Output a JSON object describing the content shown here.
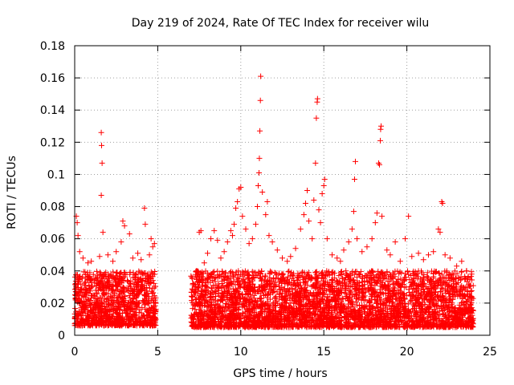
{
  "chart_data": {
    "type": "scatter",
    "title": "Day 219 of 2024, Rate Of TEC Index for receiver wilu",
    "xlabel": "GPS time / hours",
    "ylabel": "ROTI / TECUs",
    "xlim": [
      0,
      25
    ],
    "ylim": [
      0,
      0.18
    ],
    "xticks": [
      0,
      5,
      10,
      15,
      20,
      25
    ],
    "xtick_labels": [
      "0",
      "5",
      "10",
      "15",
      "20",
      "25"
    ],
    "yticks": [
      0,
      0.02,
      0.04,
      0.06,
      0.08,
      0.1,
      0.12,
      0.14,
      0.16,
      0.18
    ],
    "ytick_labels": [
      "0",
      "0.02",
      "0.04",
      "0.06",
      "0.08",
      "0.1",
      "0.12",
      "0.14",
      "0.16",
      "0.18"
    ],
    "grid": true,
    "marker": "+",
    "color": "#ff0000",
    "series": [
      {
        "name": "",
        "points": [
          [
            0.1,
            0.074
          ],
          [
            0.15,
            0.07
          ],
          [
            0.2,
            0.062
          ],
          [
            0.3,
            0.052
          ],
          [
            0.5,
            0.048
          ],
          [
            0.8,
            0.045
          ],
          [
            1.0,
            0.046
          ],
          [
            1.6,
            0.126
          ],
          [
            1.62,
            0.118
          ],
          [
            1.65,
            0.107
          ],
          [
            1.6,
            0.087
          ],
          [
            1.7,
            0.064
          ],
          [
            1.5,
            0.049
          ],
          [
            2.0,
            0.05
          ],
          [
            2.3,
            0.046
          ],
          [
            2.5,
            0.052
          ],
          [
            2.8,
            0.058
          ],
          [
            2.9,
            0.071
          ],
          [
            3.0,
            0.068
          ],
          [
            3.3,
            0.063
          ],
          [
            3.5,
            0.048
          ],
          [
            3.8,
            0.051
          ],
          [
            4.0,
            0.047
          ],
          [
            4.2,
            0.079
          ],
          [
            4.25,
            0.069
          ],
          [
            4.5,
            0.05
          ],
          [
            4.6,
            0.06
          ],
          [
            4.7,
            0.055
          ],
          [
            4.8,
            0.057
          ],
          [
            7.5,
            0.064
          ],
          [
            7.6,
            0.065
          ],
          [
            7.8,
            0.045
          ],
          [
            8.0,
            0.051
          ],
          [
            8.2,
            0.06
          ],
          [
            8.4,
            0.065
          ],
          [
            8.6,
            0.059
          ],
          [
            8.8,
            0.048
          ],
          [
            9.0,
            0.052
          ],
          [
            9.2,
            0.058
          ],
          [
            9.4,
            0.065
          ],
          [
            9.5,
            0.062
          ],
          [
            9.6,
            0.069
          ],
          [
            9.7,
            0.079
          ],
          [
            9.8,
            0.083
          ],
          [
            9.9,
            0.091
          ],
          [
            10.0,
            0.092
          ],
          [
            10.1,
            0.074
          ],
          [
            10.3,
            0.066
          ],
          [
            10.5,
            0.057
          ],
          [
            10.7,
            0.06
          ],
          [
            10.9,
            0.069
          ],
          [
            11.0,
            0.08
          ],
          [
            11.05,
            0.093
          ],
          [
            11.1,
            0.101
          ],
          [
            11.12,
            0.11
          ],
          [
            11.15,
            0.127
          ],
          [
            11.18,
            0.146
          ],
          [
            11.2,
            0.161
          ],
          [
            11.3,
            0.089
          ],
          [
            11.5,
            0.075
          ],
          [
            11.6,
            0.083
          ],
          [
            11.7,
            0.062
          ],
          [
            11.9,
            0.058
          ],
          [
            12.2,
            0.053
          ],
          [
            12.5,
            0.048
          ],
          [
            12.8,
            0.046
          ],
          [
            13.0,
            0.049
          ],
          [
            13.3,
            0.054
          ],
          [
            13.6,
            0.066
          ],
          [
            13.8,
            0.075
          ],
          [
            13.9,
            0.082
          ],
          [
            14.0,
            0.09
          ],
          [
            14.1,
            0.071
          ],
          [
            14.3,
            0.06
          ],
          [
            14.4,
            0.084
          ],
          [
            14.5,
            0.107
          ],
          [
            14.55,
            0.135
          ],
          [
            14.6,
            0.145
          ],
          [
            14.62,
            0.147
          ],
          [
            14.7,
            0.078
          ],
          [
            14.8,
            0.07
          ],
          [
            14.9,
            0.088
          ],
          [
            15.0,
            0.093
          ],
          [
            15.05,
            0.097
          ],
          [
            15.2,
            0.06
          ],
          [
            15.5,
            0.05
          ],
          [
            15.8,
            0.048
          ],
          [
            16.0,
            0.046
          ],
          [
            16.2,
            0.053
          ],
          [
            16.5,
            0.058
          ],
          [
            16.7,
            0.066
          ],
          [
            16.8,
            0.077
          ],
          [
            16.85,
            0.097
          ],
          [
            16.9,
            0.108
          ],
          [
            17.0,
            0.06
          ],
          [
            17.3,
            0.052
          ],
          [
            17.6,
            0.055
          ],
          [
            17.9,
            0.06
          ],
          [
            18.1,
            0.07
          ],
          [
            18.2,
            0.076
          ],
          [
            18.3,
            0.107
          ],
          [
            18.35,
            0.106
          ],
          [
            18.4,
            0.121
          ],
          [
            18.42,
            0.128
          ],
          [
            18.45,
            0.13
          ],
          [
            18.5,
            0.074
          ],
          [
            18.8,
            0.053
          ],
          [
            19.0,
            0.05
          ],
          [
            19.3,
            0.058
          ],
          [
            19.6,
            0.046
          ],
          [
            19.9,
            0.06
          ],
          [
            20.1,
            0.074
          ],
          [
            20.3,
            0.049
          ],
          [
            20.7,
            0.051
          ],
          [
            21.0,
            0.047
          ],
          [
            21.3,
            0.05
          ],
          [
            21.6,
            0.052
          ],
          [
            21.9,
            0.066
          ],
          [
            22.0,
            0.064
          ],
          [
            22.1,
            0.083
          ],
          [
            22.15,
            0.082
          ],
          [
            22.3,
            0.05
          ],
          [
            22.6,
            0.048
          ],
          [
            23.0,
            0.043
          ],
          [
            23.3,
            0.046
          ],
          [
            23.6,
            0.04
          ],
          [
            23.9,
            0.038
          ]
        ]
      }
    ],
    "dense_bands": [
      {
        "x_start": 0.0,
        "x_end": 4.9,
        "y_low": 0.006,
        "y_high": 0.04
      },
      {
        "x_start": 7.0,
        "x_end": 24.0,
        "y_low": 0.005,
        "y_high": 0.04
      }
    ]
  }
}
